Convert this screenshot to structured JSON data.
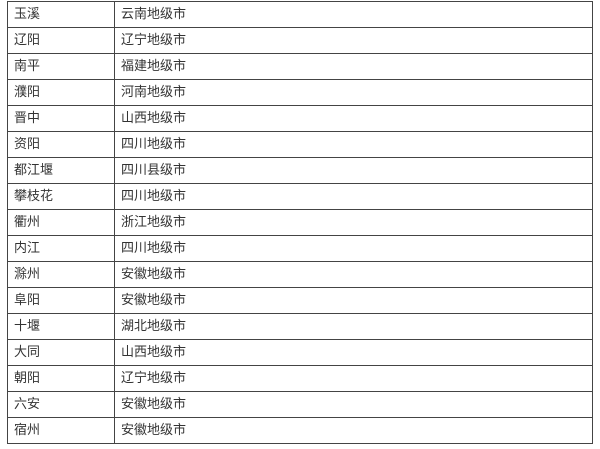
{
  "rows": [
    {
      "city": "玉溪",
      "type": "云南地级市"
    },
    {
      "city": "辽阳",
      "type": "辽宁地级市"
    },
    {
      "city": "南平",
      "type": "福建地级市"
    },
    {
      "city": "濮阳",
      "type": "河南地级市"
    },
    {
      "city": "晋中",
      "type": "山西地级市"
    },
    {
      "city": "资阳",
      "type": "四川地级市"
    },
    {
      "city": "都江堰",
      "type": "四川县级市"
    },
    {
      "city": "攀枝花",
      "type": "四川地级市"
    },
    {
      "city": "衢州",
      "type": "浙江地级市"
    },
    {
      "city": "内江",
      "type": "四川地级市"
    },
    {
      "city": "滁州",
      "type": "安徽地级市"
    },
    {
      "city": "阜阳",
      "type": "安徽地级市"
    },
    {
      "city": "十堰",
      "type": "湖北地级市"
    },
    {
      "city": "大同",
      "type": "山西地级市"
    },
    {
      "city": "朝阳",
      "type": "辽宁地级市"
    },
    {
      "city": "六安",
      "type": "安徽地级市"
    },
    {
      "city": "宿州",
      "type": "安徽地级市"
    }
  ]
}
